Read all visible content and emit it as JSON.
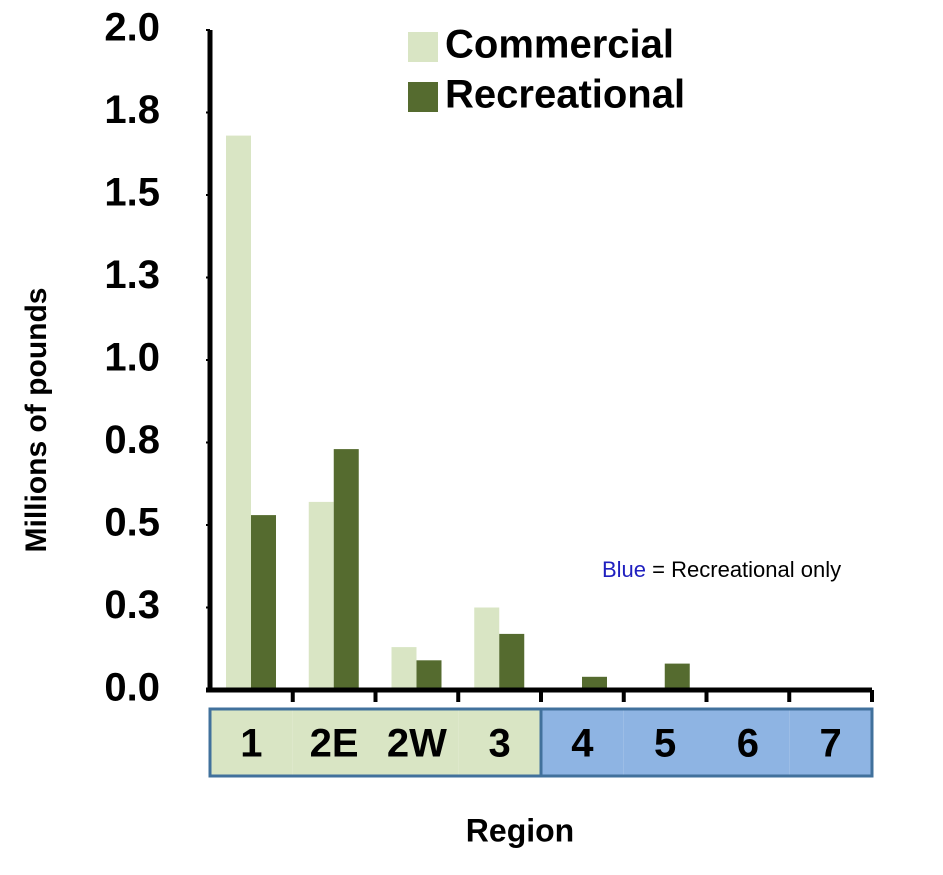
{
  "chart_data": {
    "type": "bar",
    "y_label": "Millions of pounds",
    "x_label": "Region",
    "categories": [
      "1",
      "2E",
      "2W",
      "3",
      "4",
      "5",
      "6",
      "7"
    ],
    "category_colors": [
      "#d9e5c4",
      "#d9e5c4",
      "#d9e5c4",
      "#d9e5c4",
      "#8eb4e3",
      "#8eb4e3",
      "#8eb4e3",
      "#8eb4e3"
    ],
    "series": [
      {
        "name": "Commercial",
        "color": "#d9e5c4",
        "values": [
          1.68,
          0.57,
          0.13,
          0.25,
          0,
          0,
          0,
          0
        ]
      },
      {
        "name": "Recreational",
        "color": "#556b2f",
        "values": [
          0.53,
          0.73,
          0.09,
          0.17,
          0.04,
          0.08,
          0,
          0
        ]
      }
    ],
    "ylim": [
      0,
      2.0
    ],
    "yticks": [
      {
        "value": 0,
        "label": "0.0"
      },
      {
        "value": 0.25,
        "label": "0.3"
      },
      {
        "value": 0.5,
        "label": "0.5"
      },
      {
        "value": 0.75,
        "label": "0.8"
      },
      {
        "value": 1.0,
        "label": "1.0"
      },
      {
        "value": 1.25,
        "label": "1.3"
      },
      {
        "value": 1.5,
        "label": "1.5"
      },
      {
        "value": 1.75,
        "label": "1.8"
      },
      {
        "value": 2.0,
        "label": "2.0"
      }
    ],
    "annotation": {
      "highlight": "Blue",
      "highlight_color": "#1f1fbf",
      "text": "= Recreational only"
    }
  }
}
